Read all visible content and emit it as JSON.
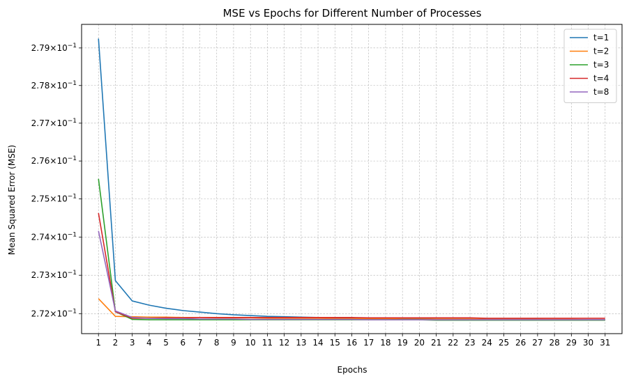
{
  "chart_data": {
    "type": "line",
    "title": "MSE vs Epochs for Different Number of Processes",
    "xlabel": "Epochs",
    "ylabel": "Mean Squared Error (MSE)",
    "yscale": "log",
    "grid": true,
    "legend_position": "top-right",
    "x": [
      1,
      2,
      3,
      4,
      5,
      6,
      7,
      8,
      9,
      10,
      11,
      12,
      13,
      14,
      15,
      16,
      17,
      18,
      19,
      20,
      21,
      22,
      23,
      24,
      25,
      26,
      27,
      28,
      29,
      30,
      31
    ],
    "xlim": [
      0.0,
      32.0
    ],
    "ylim": [
      0.27148,
      0.27963
    ],
    "yticks": [
      0.272,
      0.273,
      0.274,
      0.275,
      0.276,
      0.277,
      0.278,
      0.279
    ],
    "ytick_labels": [
      {
        "mantissa": "2.72",
        "base": "10",
        "exp": "−1"
      },
      {
        "mantissa": "2.73",
        "base": "10",
        "exp": "−1"
      },
      {
        "mantissa": "2.74",
        "base": "10",
        "exp": "−1"
      },
      {
        "mantissa": "2.75",
        "base": "10",
        "exp": "−1"
      },
      {
        "mantissa": "2.76",
        "base": "10",
        "exp": "−1"
      },
      {
        "mantissa": "2.77",
        "base": "10",
        "exp": "−1"
      },
      {
        "mantissa": "2.78",
        "base": "10",
        "exp": "−1"
      },
      {
        "mantissa": "2.79",
        "base": "10",
        "exp": "−1"
      }
    ],
    "series": [
      {
        "name": "t=1",
        "color": "#1f77b4",
        "values": [
          0.27925,
          0.27286,
          0.27233,
          0.27222,
          0.27214,
          0.27208,
          0.27204,
          0.272,
          0.27197,
          0.27195,
          0.27193,
          0.27192,
          0.27191,
          0.2719,
          0.27189,
          0.27189,
          0.27188,
          0.27188,
          0.27187,
          0.27187,
          0.27186,
          0.27186,
          0.27186,
          0.27185,
          0.27185,
          0.27185,
          0.27185,
          0.27184,
          0.27184,
          0.27184,
          0.27184
        ]
      },
      {
        "name": "t=2",
        "color": "#ff7f0e",
        "values": [
          0.27239,
          0.27193,
          0.27192,
          0.27191,
          0.27191,
          0.2719,
          0.2719,
          0.27189,
          0.27189,
          0.27189,
          0.27188,
          0.27188,
          0.27188,
          0.27188,
          0.27187,
          0.27187,
          0.27187,
          0.27187,
          0.27186,
          0.27186,
          0.27186,
          0.27186,
          0.27186,
          0.27185,
          0.27185,
          0.27185,
          0.27185,
          0.27185,
          0.27185,
          0.27184,
          0.27184
        ]
      },
      {
        "name": "t=3",
        "color": "#2ca02c",
        "values": [
          0.27553,
          0.27205,
          0.27185,
          0.27184,
          0.27184,
          0.27184,
          0.27184,
          0.27184,
          0.27184,
          0.27184,
          0.27184,
          0.27184,
          0.27184,
          0.27184,
          0.27184,
          0.27184,
          0.27184,
          0.27184,
          0.27184,
          0.27184,
          0.27183,
          0.27183,
          0.27183,
          0.27183,
          0.27183,
          0.27183,
          0.27183,
          0.27183,
          0.27183,
          0.27183,
          0.27183
        ]
      },
      {
        "name": "t=4",
        "color": "#d62728",
        "values": [
          0.27463,
          0.27205,
          0.27188,
          0.27188,
          0.27189,
          0.27189,
          0.2719,
          0.2719,
          0.2719,
          0.2719,
          0.2719,
          0.2719,
          0.2719,
          0.2719,
          0.2719,
          0.2719,
          0.27189,
          0.27189,
          0.27189,
          0.27189,
          0.27189,
          0.27189,
          0.27189,
          0.27188,
          0.27188,
          0.27188,
          0.27188,
          0.27188,
          0.27188,
          0.27188,
          0.27188
        ]
      },
      {
        "name": "t=8",
        "color": "#9467bd",
        "values": [
          0.27416,
          0.27207,
          0.2719,
          0.27188,
          0.27187,
          0.27187,
          0.27186,
          0.27186,
          0.27186,
          0.27185,
          0.27185,
          0.27185,
          0.27185,
          0.27185,
          0.27185,
          0.27185,
          0.27184,
          0.27184,
          0.27184,
          0.27184,
          0.27184,
          0.27184,
          0.27184,
          0.27184,
          0.27184,
          0.27184,
          0.27184,
          0.27184,
          0.27184,
          0.27184,
          0.27184
        ]
      }
    ]
  }
}
